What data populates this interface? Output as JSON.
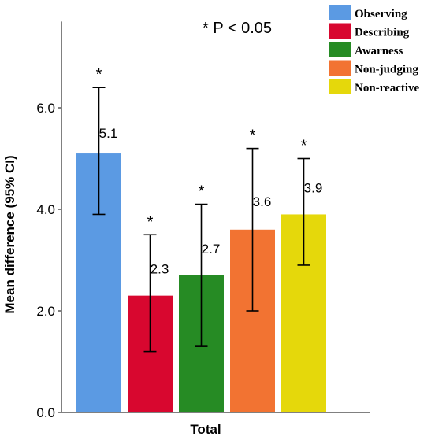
{
  "chart_data": {
    "type": "bar",
    "ylabel": "Mean difference (95% CI)",
    "xlabel": "Total",
    "annotation": "* P < 0.05",
    "ylim": [
      0,
      7.7
    ],
    "yticks": [
      0.0,
      2.0,
      4.0,
      6.0
    ],
    "ytick_labels": [
      "0.0",
      "2.0",
      "4.0",
      "6.0"
    ],
    "legend_position": "top-right",
    "series": [
      {
        "name": "Observing",
        "value": 5.1,
        "value_label": "5.1",
        "ci": [
          3.9,
          6.4
        ],
        "color": "#5b9ae3",
        "significance": "*"
      },
      {
        "name": "Describing",
        "value": 2.3,
        "value_label": "2.3",
        "ci": [
          1.2,
          3.5
        ],
        "color": "#d8072f",
        "significance": "*"
      },
      {
        "name": "Awarness",
        "value": 2.7,
        "value_label": "2.7",
        "ci": [
          1.3,
          4.1
        ],
        "color": "#268b24",
        "significance": "*"
      },
      {
        "name": "Non-judging",
        "value": 3.6,
        "value_label": "3.6",
        "ci": [
          2.0,
          5.2
        ],
        "color": "#f27332",
        "significance": "*"
      },
      {
        "name": "Non-reactive",
        "value": 3.9,
        "value_label": "3.9",
        "ci": [
          2.9,
          5.0
        ],
        "color": "#e5d80b",
        "significance": "*"
      }
    ]
  }
}
